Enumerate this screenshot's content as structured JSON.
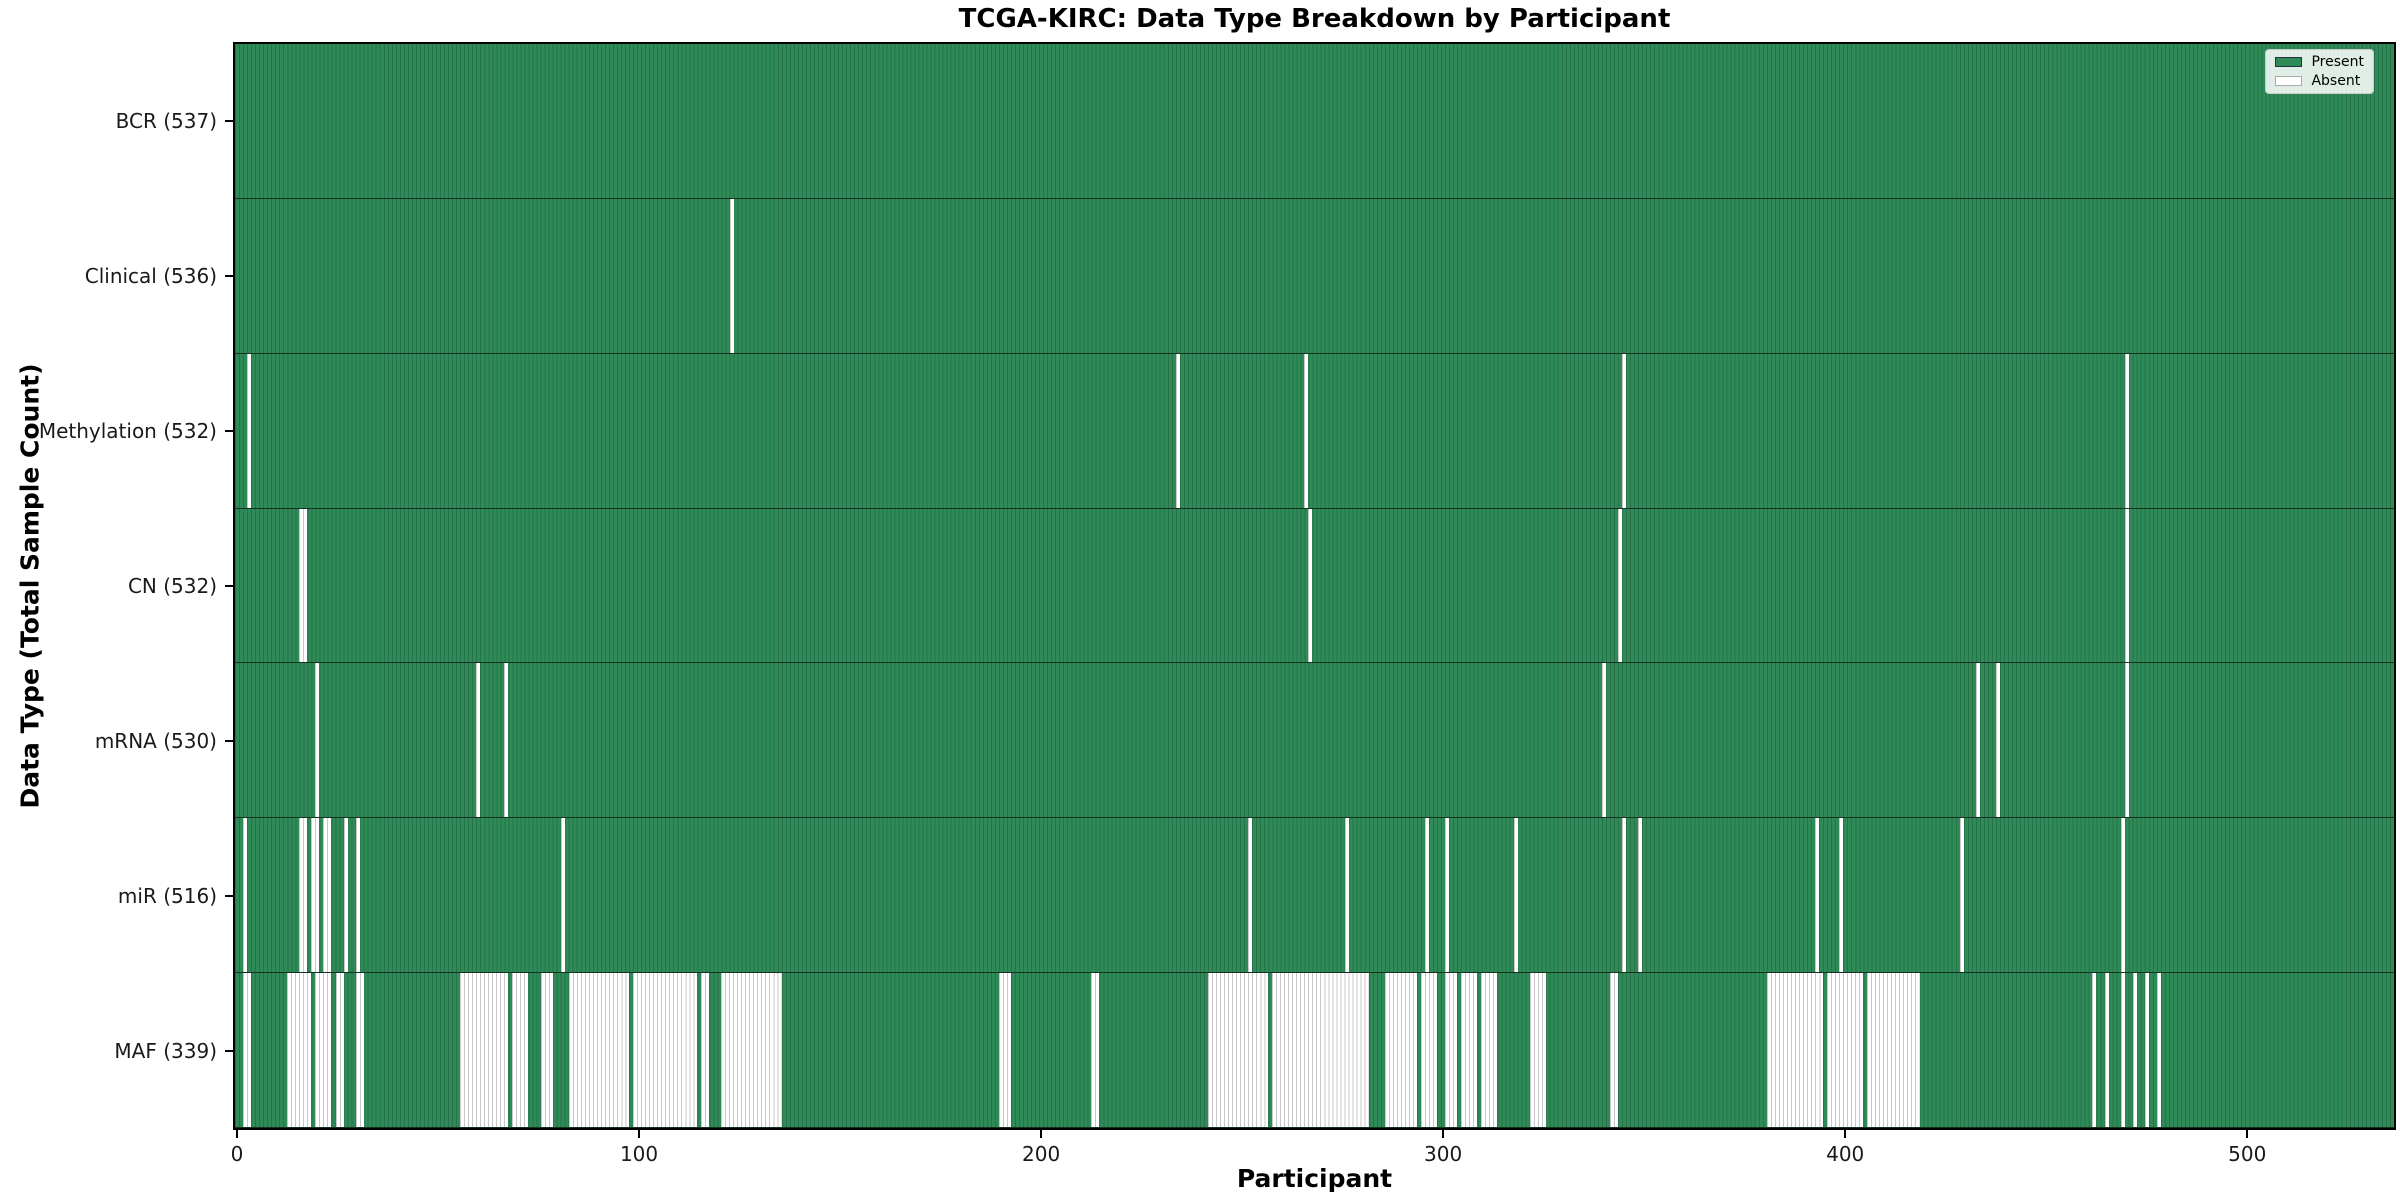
{
  "title": "TCGA-KIRC: Data Type Breakdown by Participant",
  "chart_data": {
    "type": "heatmap",
    "title": "TCGA-KIRC: Data Type Breakdown by Participant",
    "xlabel": "Participant",
    "ylabel": "Data Type (Total Sample Count)",
    "xlim": [
      -0.5,
      536.5
    ],
    "n_participants": 537,
    "x_ticks": [
      0,
      100,
      200,
      300,
      400,
      500
    ],
    "grid": false,
    "legend": {
      "position": "upper right",
      "entries": [
        {
          "label": "Present",
          "color": "#2e8b57"
        },
        {
          "label": "Absent",
          "color": "#ffffff"
        }
      ]
    },
    "colors": {
      "present_fill": "#2e8b57",
      "present_edge": "#26734a",
      "absent_fill": "#ffffff",
      "absent_edge": "#c8c8c8",
      "row_divider": "#14311f",
      "spine": "#000000"
    },
    "rows": [
      {
        "label": "BCR (537)",
        "data_type": "BCR",
        "present_count": 537,
        "absent": []
      },
      {
        "label": "Clinical (536)",
        "data_type": "Clinical",
        "present_count": 536,
        "absent": [
          [
            123,
            123
          ]
        ]
      },
      {
        "label": "Methylation (532)",
        "data_type": "Methylation",
        "present_count": 532,
        "absent": [
          [
            3,
            3
          ],
          [
            234,
            234
          ],
          [
            266,
            266
          ],
          [
            345,
            345
          ],
          [
            470,
            470
          ]
        ]
      },
      {
        "label": "CN (532)",
        "data_type": "CN",
        "present_count": 532,
        "absent": [
          [
            16,
            17
          ],
          [
            267,
            267
          ],
          [
            344,
            344
          ],
          [
            470,
            470
          ]
        ]
      },
      {
        "label": "mRNA (530)",
        "data_type": "mRNA",
        "present_count": 530,
        "absent": [
          [
            20,
            20
          ],
          [
            60,
            60
          ],
          [
            67,
            67
          ],
          [
            340,
            340
          ],
          [
            433,
            433
          ],
          [
            438,
            438
          ],
          [
            470,
            470
          ]
        ]
      },
      {
        "label": "miR (516)",
        "data_type": "miR",
        "present_count": 516,
        "absent": [
          [
            2,
            2
          ],
          [
            16,
            17
          ],
          [
            19,
            20
          ],
          [
            22,
            23
          ],
          [
            27,
            27
          ],
          [
            30,
            30
          ],
          [
            81,
            81
          ],
          [
            252,
            252
          ],
          [
            276,
            276
          ],
          [
            296,
            296
          ],
          [
            301,
            301
          ],
          [
            318,
            318
          ],
          [
            345,
            345
          ],
          [
            349,
            349
          ],
          [
            393,
            393
          ],
          [
            399,
            399
          ],
          [
            429,
            429
          ],
          [
            469,
            469
          ]
        ]
      },
      {
        "label": "MAF (339)",
        "data_type": "MAF",
        "present_count": 339,
        "absent": [
          [
            2,
            3
          ],
          [
            13,
            18
          ],
          [
            20,
            23
          ],
          [
            25,
            26
          ],
          [
            30,
            31
          ],
          [
            56,
            67
          ],
          [
            69,
            72
          ],
          [
            76,
            78
          ],
          [
            83,
            97
          ],
          [
            99,
            114
          ],
          [
            116,
            117
          ],
          [
            121,
            135
          ],
          [
            190,
            192
          ],
          [
            213,
            214
          ],
          [
            242,
            256
          ],
          [
            258,
            281
          ],
          [
            286,
            293
          ],
          [
            295,
            298
          ],
          [
            301,
            303
          ],
          [
            305,
            308
          ],
          [
            310,
            313
          ],
          [
            322,
            325
          ],
          [
            342,
            343
          ],
          [
            381,
            394
          ],
          [
            396,
            404
          ],
          [
            406,
            418
          ],
          [
            462,
            462
          ],
          [
            465,
            465
          ],
          [
            469,
            469
          ],
          [
            472,
            472
          ],
          [
            475,
            475
          ],
          [
            478,
            478
          ]
        ]
      }
    ]
  }
}
